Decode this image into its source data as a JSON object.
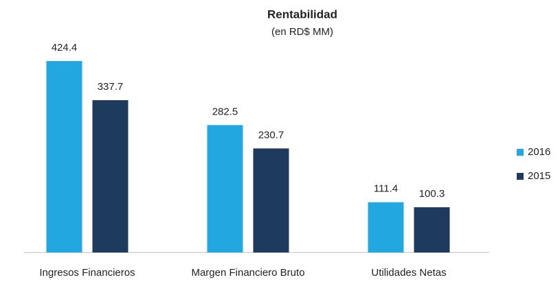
{
  "chart_data": {
    "type": "bar",
    "title": "Rentabilidad",
    "subtitle": "(en RD$ MM)",
    "categories": [
      "Ingresos Financieros",
      "Margen Financiero Bruto",
      "Utilidades Netas"
    ],
    "series": [
      {
        "name": "2016",
        "color": "#23a7e1",
        "values": [
          424.4,
          282.5,
          111.4
        ]
      },
      {
        "name": "2015",
        "color": "#1e3a5c",
        "values": [
          337.7,
          230.7,
          100.3
        ]
      }
    ],
    "legend": "right"
  }
}
